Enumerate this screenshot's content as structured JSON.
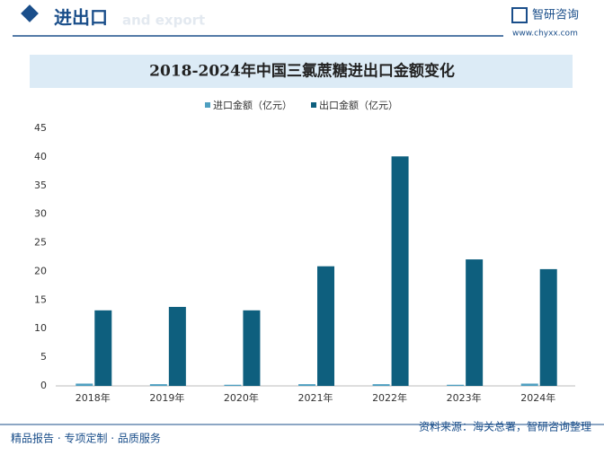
{
  "header": {
    "title": "进出口",
    "subtitle": "and export",
    "brand": "智研咨询",
    "url": "www.chyxx.com"
  },
  "footer": {
    "left": "精品报告 · 专项定制 · 品质服务",
    "right": "资料来源：海关总署，智研咨询整理"
  },
  "chart_data": {
    "type": "bar",
    "title": "2018-2024年中国三氯蔗糖进出口金额变化",
    "categories": [
      "2018年",
      "2019年",
      "2020年",
      "2021年",
      "2022年",
      "2023年",
      "2024年"
    ],
    "series": [
      {
        "name": "进口金额（亿元）",
        "color": "#4e9fc0",
        "values": [
          0.4,
          0.3,
          0.2,
          0.3,
          0.3,
          0.2,
          0.4
        ]
      },
      {
        "name": "出口金额（亿元）",
        "color": "#0e5f7e",
        "values": [
          13.2,
          13.8,
          13.2,
          20.9,
          40.1,
          22.1,
          20.4
        ]
      }
    ],
    "ylim": [
      0,
      45
    ],
    "yticks": [
      0,
      5,
      10,
      15,
      20,
      25,
      30,
      35,
      40,
      45
    ],
    "grid": false,
    "legend": "top"
  }
}
